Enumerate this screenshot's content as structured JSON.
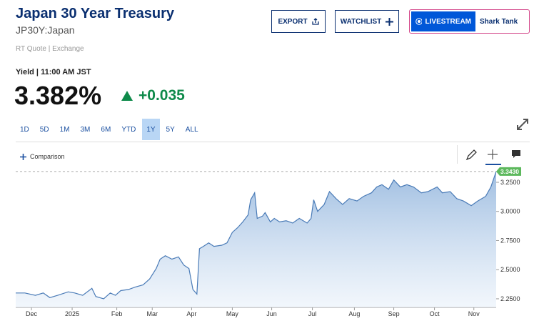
{
  "header": {
    "title": "Japan 30 Year Treasury",
    "symbol": "JP30Y:Japan",
    "quote_source": "RT Quote | Exchange"
  },
  "buttons": {
    "export": "EXPORT",
    "watchlist": "WATCHLIST",
    "livestream": "LIVESTREAM",
    "show": "Shark Tank"
  },
  "quote": {
    "yield_label": "Yield | 11:00 AM JST",
    "last": "3.382%",
    "change": "+0.035"
  },
  "ranges": {
    "items": [
      "1D",
      "5D",
      "1M",
      "3M",
      "6M",
      "YTD",
      "1Y",
      "5Y",
      "ALL"
    ],
    "selected": "1Y"
  },
  "comparison": "Comparison",
  "chart_data": {
    "type": "area",
    "color": "#4a7bb7",
    "x": [
      0,
      7,
      15,
      21,
      26,
      32,
      40,
      45,
      51,
      58,
      61,
      67,
      72,
      76,
      80,
      86,
      91,
      97,
      102,
      107,
      110,
      114,
      119,
      124,
      128,
      132,
      135,
      138,
      140,
      143,
      147,
      151,
      157,
      161,
      165,
      169,
      173,
      177,
      179,
      182,
      184,
      188,
      190,
      194,
      197,
      201,
      206,
      211,
      216,
      222,
      225,
      227,
      230,
      235,
      239,
      244,
      249,
      254,
      260,
      265,
      271,
      275,
      279,
      284,
      288,
      293,
      298,
      303,
      309,
      314,
      321,
      325,
      331,
      336,
      341,
      347,
      352,
      358,
      362,
      366
    ],
    "values": [
      2.3,
      2.3,
      2.28,
      2.3,
      2.26,
      2.28,
      2.31,
      2.3,
      2.28,
      2.34,
      2.27,
      2.25,
      2.3,
      2.28,
      2.32,
      2.33,
      2.35,
      2.37,
      2.42,
      2.51,
      2.59,
      2.62,
      2.59,
      2.61,
      2.54,
      2.51,
      2.33,
      2.29,
      2.68,
      2.7,
      2.73,
      2.7,
      2.71,
      2.73,
      2.82,
      2.86,
      2.91,
      2.97,
      3.1,
      3.16,
      2.94,
      2.96,
      2.99,
      2.91,
      2.94,
      2.91,
      2.92,
      2.9,
      2.94,
      2.9,
      2.94,
      3.1,
      3.0,
      3.06,
      3.17,
      3.11,
      3.06,
      3.11,
      3.09,
      3.13,
      3.16,
      3.21,
      3.23,
      3.19,
      3.27,
      3.21,
      3.23,
      3.21,
      3.16,
      3.17,
      3.21,
      3.16,
      3.17,
      3.11,
      3.09,
      3.05,
      3.09,
      3.13,
      3.21,
      3.343
    ],
    "last_label": "3.3430",
    "xlim": [
      0,
      366
    ],
    "xticks": [
      {
        "value": 12,
        "label": "Dec"
      },
      {
        "value": 43,
        "label": "2025"
      },
      {
        "value": 77,
        "label": "Feb"
      },
      {
        "value": 104,
        "label": "Mar"
      },
      {
        "value": 134,
        "label": "Apr"
      },
      {
        "value": 165,
        "label": "May"
      },
      {
        "value": 195,
        "label": "Jun"
      },
      {
        "value": 226,
        "label": "Jul"
      },
      {
        "value": 258,
        "label": "Aug"
      },
      {
        "value": 288,
        "label": "Sep"
      },
      {
        "value": 319,
        "label": "Oct"
      },
      {
        "value": 349,
        "label": "Nov"
      }
    ],
    "ylim": [
      2.176,
      3.385
    ],
    "yticks": [
      {
        "value": 2.25,
        "label": "2.2500"
      },
      {
        "value": 2.5,
        "label": "2.5000"
      },
      {
        "value": 2.75,
        "label": "2.7500"
      },
      {
        "value": 3,
        "label": "3.0000"
      },
      {
        "value": 3.25,
        "label": "3.2500"
      }
    ]
  }
}
